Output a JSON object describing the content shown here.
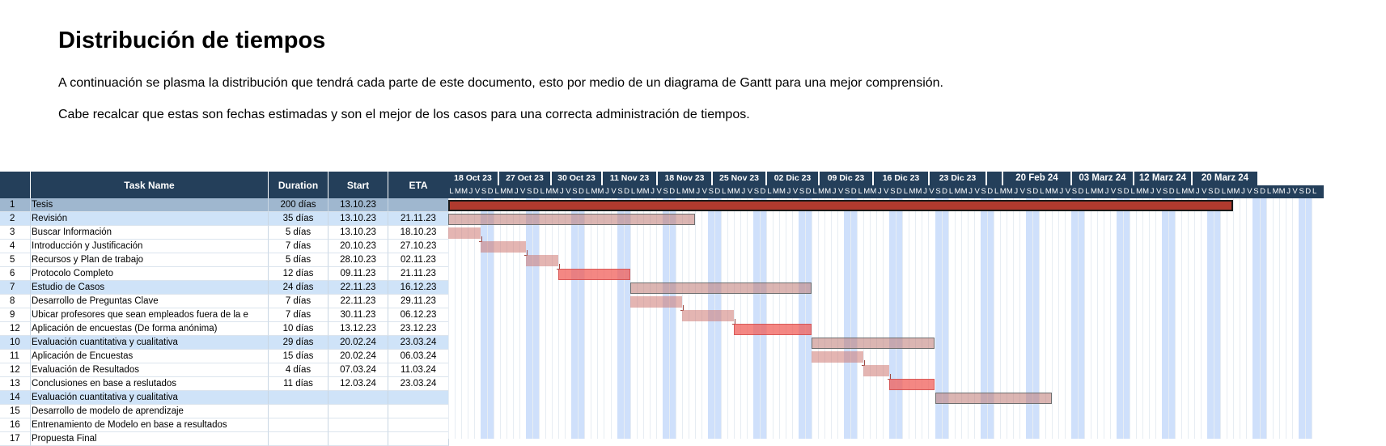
{
  "heading": "Distribución de tiempos",
  "paragraphs": [
    "A continuación se plasma la distribución que tendrá cada parte de este documento, esto por medio de un diagrama de Gantt para una mejor comprensión.",
    "Cabe recalcar que estas son fechas estimadas y son el mejor de los casos para una correcta administración de tiempos."
  ],
  "table": {
    "headers": {
      "id": "",
      "name": "Task Name",
      "duration": "Duration",
      "start": "Start",
      "eta": "ETA"
    },
    "rows": [
      {
        "id": "1",
        "name": "Tesis",
        "duration": "200 días",
        "start": "13.10.23",
        "eta": "",
        "style": "first"
      },
      {
        "id": "2",
        "name": "Revisión",
        "duration": "35 días",
        "start": "13.10.23",
        "eta": "21.11.23",
        "style": "hl"
      },
      {
        "id": "3",
        "name": "Buscar Información",
        "duration": "5 días",
        "start": "13.10.23",
        "eta": "18.10.23",
        "style": ""
      },
      {
        "id": "4",
        "name": "Introducción y Justificación",
        "duration": "7 días",
        "start": "20.10.23",
        "eta": "27.10.23",
        "style": ""
      },
      {
        "id": "5",
        "name": "Recursos y Plan de trabajo",
        "duration": "5 días",
        "start": "28.10.23",
        "eta": "02.11.23",
        "style": ""
      },
      {
        "id": "6",
        "name": "Protocolo Completo",
        "duration": "12 días",
        "start": "09.11.23",
        "eta": "21.11.23",
        "style": ""
      },
      {
        "id": "7",
        "name": "Estudio de Casos",
        "duration": "24 días",
        "start": "22.11.23",
        "eta": "16.12.23",
        "style": "hl"
      },
      {
        "id": "8",
        "name": "Desarrollo de Preguntas Clave",
        "duration": "7 días",
        "start": "22.11.23",
        "eta": "29.11.23",
        "style": ""
      },
      {
        "id": "9",
        "name": "Ubicar profesores que sean empleados fuera de la e",
        "duration": "7 días",
        "start": "30.11.23",
        "eta": "06.12.23",
        "style": ""
      },
      {
        "id": "12",
        "name": "Aplicación de encuestas (De forma anónima)",
        "duration": "10 días",
        "start": "13.12.23",
        "eta": "23.12.23",
        "style": ""
      },
      {
        "id": "10",
        "name": "Evaluación cuantitativa y cualitativa",
        "duration": "29 días",
        "start": "20.02.24",
        "eta": "23.03.24",
        "style": "hl"
      },
      {
        "id": "11",
        "name": "Aplicación de Encuestas",
        "duration": "15 días",
        "start": "20.02.24",
        "eta": "06.03.24",
        "style": ""
      },
      {
        "id": "12",
        "name": "Evaluación de Resultados",
        "duration": "4 días",
        "start": "07.03.24",
        "eta": "11.03.24",
        "style": ""
      },
      {
        "id": "13",
        "name": "Conclusiones en base a reslutados",
        "duration": "11 días",
        "start": "12.03.24",
        "eta": "23.03.24",
        "style": ""
      },
      {
        "id": "14",
        "name": "Evaluación cuantitativa y cualitativa",
        "duration": "",
        "start": "",
        "eta": "",
        "style": "hl"
      },
      {
        "id": "15",
        "name": "Desarrollo de modelo de aprendizaje",
        "duration": "",
        "start": "",
        "eta": "",
        "style": ""
      },
      {
        "id": "16",
        "name": "Entrenamiento de Modelo en base a resultados",
        "duration": "",
        "start": "",
        "eta": "",
        "style": ""
      },
      {
        "id": "17",
        "name": "Propuesta Final",
        "duration": "",
        "start": "",
        "eta": "",
        "style": ""
      }
    ]
  },
  "gantt": {
    "weeks": [
      "18 Oct 23",
      "27 Oct 23",
      "30 Oct 23",
      "11 Nov 23",
      "18 Nov 23",
      "25 Nov 23",
      "02 Dic 23",
      "09 Dic 23",
      "16 Dic 23",
      "23 Dic 23",
      "",
      "20 Feb 24",
      "03 Marz 24",
      "12 Marz 24",
      "20 Marz 24"
    ],
    "day_letters": [
      "L",
      "M",
      "M",
      "J",
      "V",
      "S",
      "D"
    ],
    "bars": [
      {
        "row": 0,
        "start_day": 0,
        "end_day": 121,
        "kind": "main"
      },
      {
        "row": 1,
        "start_day": 0,
        "end_day": 38,
        "kind": "summary"
      },
      {
        "row": 2,
        "start_day": 0,
        "end_day": 5,
        "kind": "task"
      },
      {
        "row": 3,
        "start_day": 5,
        "end_day": 12,
        "kind": "task"
      },
      {
        "row": 4,
        "start_day": 12,
        "end_day": 17,
        "kind": "task"
      },
      {
        "row": 5,
        "start_day": 17,
        "end_day": 28,
        "kind": "crit"
      },
      {
        "row": 6,
        "start_day": 28,
        "end_day": 56,
        "kind": "summary"
      },
      {
        "row": 7,
        "start_day": 28,
        "end_day": 36,
        "kind": "task"
      },
      {
        "row": 8,
        "start_day": 36,
        "end_day": 44,
        "kind": "task"
      },
      {
        "row": 9,
        "start_day": 44,
        "end_day": 56,
        "kind": "crit"
      },
      {
        "row": 10,
        "start_day": 56,
        "end_day": 75,
        "kind": "summary"
      },
      {
        "row": 11,
        "start_day": 56,
        "end_day": 64,
        "kind": "task"
      },
      {
        "row": 12,
        "start_day": 64,
        "end_day": 68,
        "kind": "task"
      },
      {
        "row": 13,
        "start_day": 68,
        "end_day": 75,
        "kind": "crit"
      },
      {
        "row": 14,
        "start_day": 75,
        "end_day": 93,
        "kind": "summary"
      }
    ]
  },
  "colors": {
    "header_bg": "#243f5a",
    "highlight_row": "#cfe3f8",
    "weekend_band": "#cfe0fb",
    "summary_bar": "#be7873",
    "critical_bar": "#f05f5a",
    "main_bar": "#b03a2e"
  }
}
